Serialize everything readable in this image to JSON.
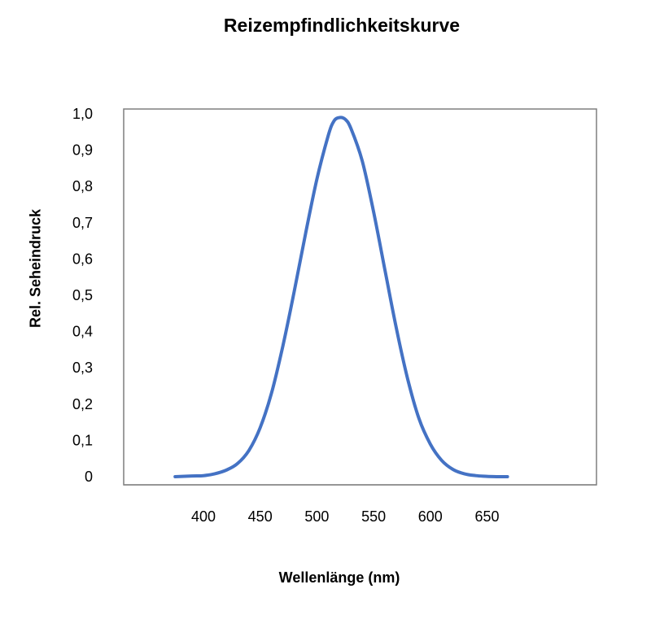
{
  "chart_data": {
    "type": "line",
    "title": "Reizempfindlichkeitskurve",
    "xlabel": "Wellenlänge (nm)",
    "ylabel": "Rel. Seheindruck",
    "xlim": [
      350,
      700
    ],
    "ylim": [
      0,
      1.0
    ],
    "x_ticks": [
      400,
      450,
      500,
      550,
      600,
      650
    ],
    "x_tick_labels": [
      "400",
      "450",
      "500",
      "550",
      "600",
      "650"
    ],
    "y_ticks": [
      0,
      0.1,
      0.2,
      0.3,
      0.4,
      0.5,
      0.6,
      0.7,
      0.8,
      0.9,
      1.0
    ],
    "y_tick_labels": [
      "0",
      "0,1",
      "0,2",
      "0,3",
      "0,4",
      "0,5",
      "0,6",
      "0,7",
      "0,8",
      "0,9",
      "1,0"
    ],
    "grid": false,
    "legend": "none",
    "series": [
      {
        "color": "#4472c4",
        "x": [
          375,
          390,
          400,
          410,
          420,
          430,
          440,
          450,
          460,
          470,
          480,
          490,
          500,
          510,
          515,
          520,
          525,
          530,
          540,
          550,
          560,
          570,
          580,
          590,
          600,
          610,
          620,
          630,
          640,
          650,
          660,
          668
        ],
        "y": [
          0.0,
          0.002,
          0.003,
          0.008,
          0.018,
          0.036,
          0.072,
          0.135,
          0.23,
          0.36,
          0.51,
          0.67,
          0.82,
          0.94,
          0.98,
          0.99,
          0.985,
          0.96,
          0.87,
          0.73,
          0.57,
          0.41,
          0.27,
          0.16,
          0.09,
          0.045,
          0.02,
          0.008,
          0.003,
          0.001,
          0.0,
          0.0
        ]
      }
    ]
  }
}
